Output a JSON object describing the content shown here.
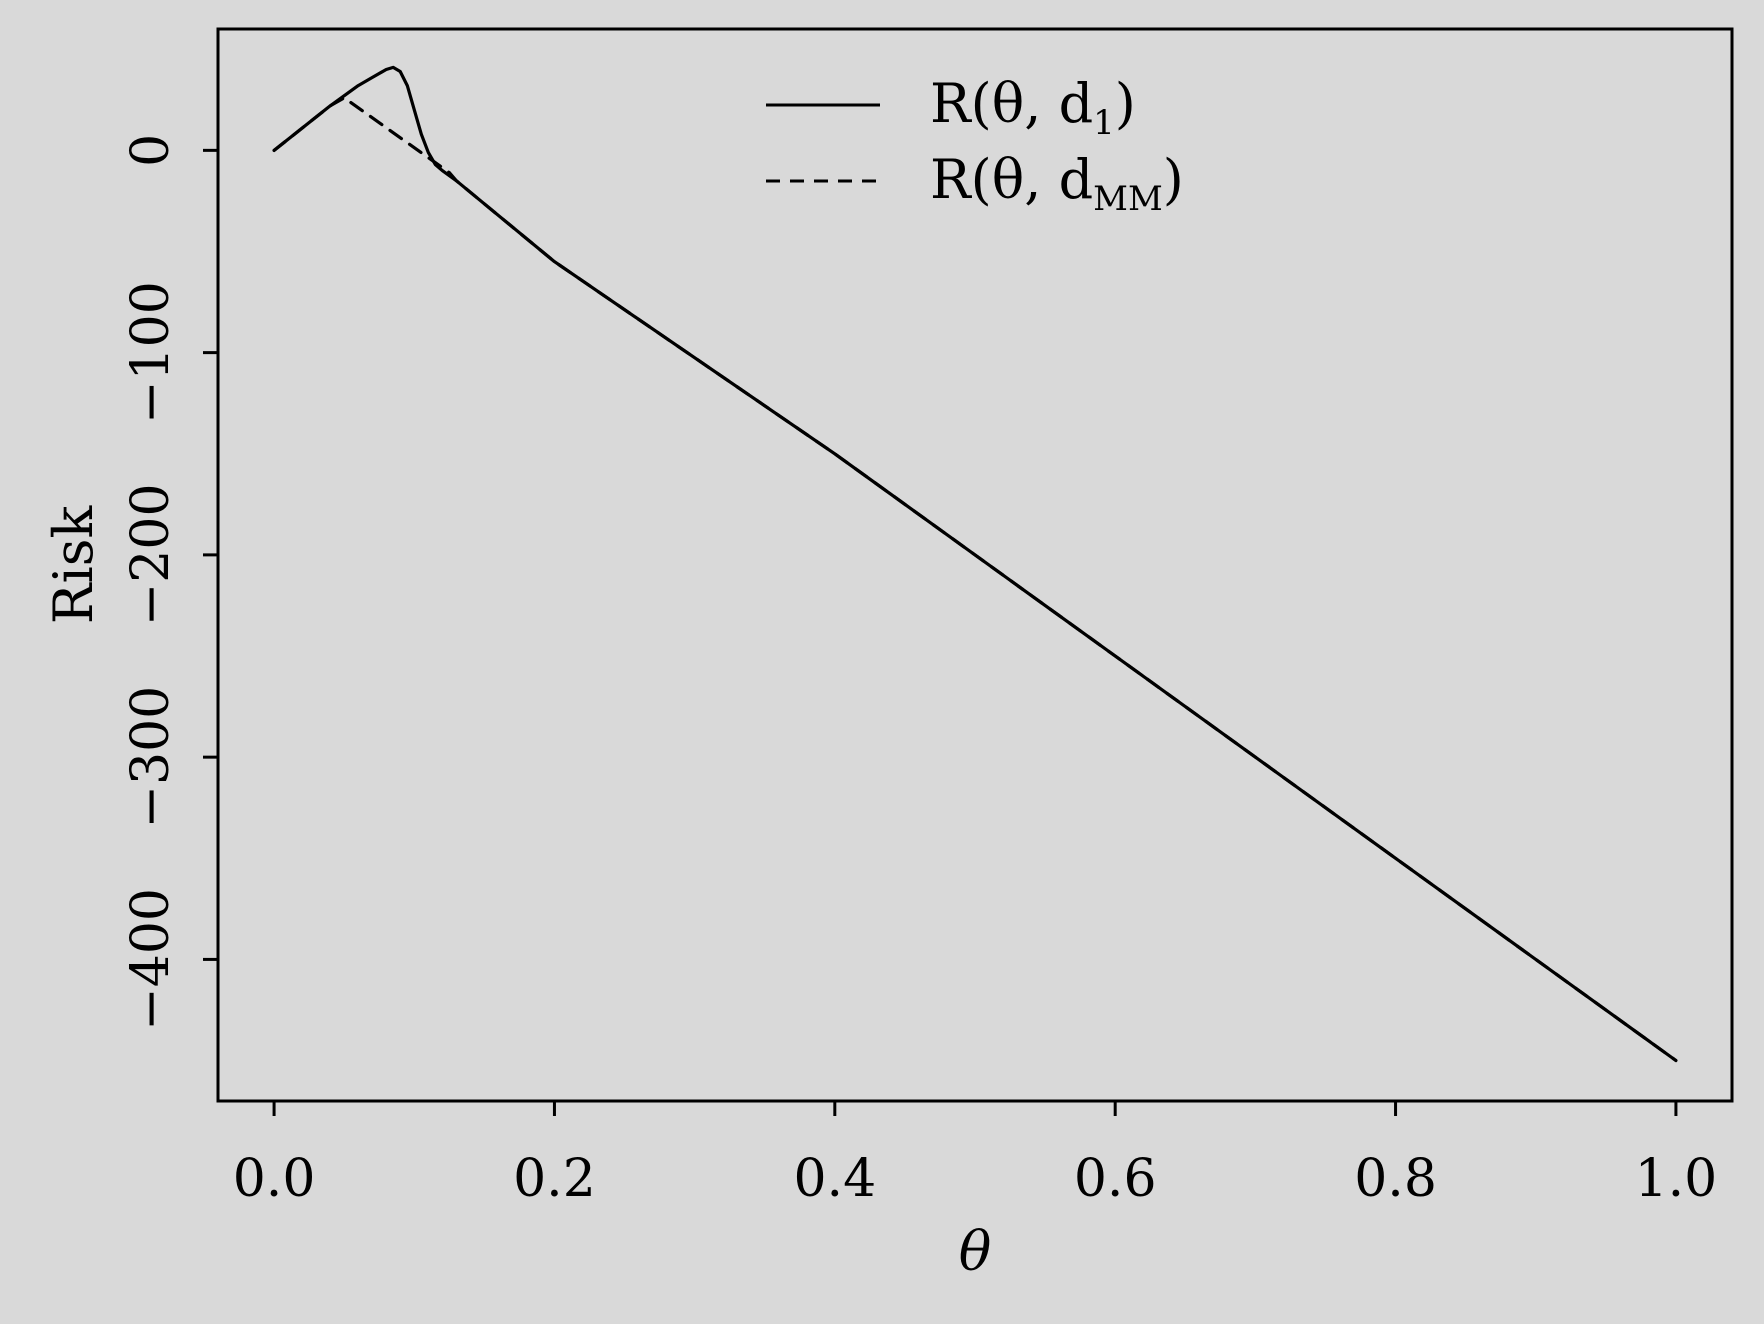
{
  "chart_data": {
    "type": "line",
    "xlabel": "θ",
    "ylabel": "Risk",
    "xlim": [
      -0.04,
      1.04
    ],
    "ylim": [
      -470,
      60
    ],
    "xticks": [
      0.0,
      0.2,
      0.4,
      0.6,
      0.8,
      1.0
    ],
    "xtick_labels": [
      "0.0",
      "0.2",
      "0.4",
      "0.6",
      "0.8",
      "1.0"
    ],
    "yticks": [
      0,
      -100,
      -200,
      -300,
      -400
    ],
    "ytick_labels": [
      "0",
      "−100",
      "−200",
      "−300",
      "−400"
    ],
    "grid": false,
    "legend_position": "top-center",
    "series": [
      {
        "name": "R(θ, d1)",
        "legend_main": "R(θ, d",
        "legend_sub": "1",
        "legend_close": ")",
        "line_style": "solid",
        "color": "#000000",
        "x": [
          0.0,
          0.04,
          0.06,
          0.07,
          0.08,
          0.085,
          0.09,
          0.095,
          0.1,
          0.105,
          0.11,
          0.115,
          0.12,
          0.13,
          0.2,
          0.4,
          0.6,
          0.8,
          1.0
        ],
        "y": [
          0,
          22,
          32,
          36,
          40,
          41,
          39,
          32,
          20,
          8,
          -1,
          -7,
          -10,
          -15,
          -55,
          -150,
          -250,
          -350,
          -450
        ]
      },
      {
        "name": "R(θ, dMM)",
        "legend_main": "R(θ, d",
        "legend_sub": "MM",
        "legend_close": ")",
        "line_style": "dashed",
        "color": "#000000",
        "x": [
          0.0,
          0.04,
          0.05,
          0.125,
          0.13,
          0.2,
          0.4,
          0.6,
          0.8,
          1.0
        ],
        "y": [
          0,
          22,
          26,
          -11,
          -15,
          -55,
          -150,
          -250,
          -350,
          -450
        ]
      }
    ]
  }
}
